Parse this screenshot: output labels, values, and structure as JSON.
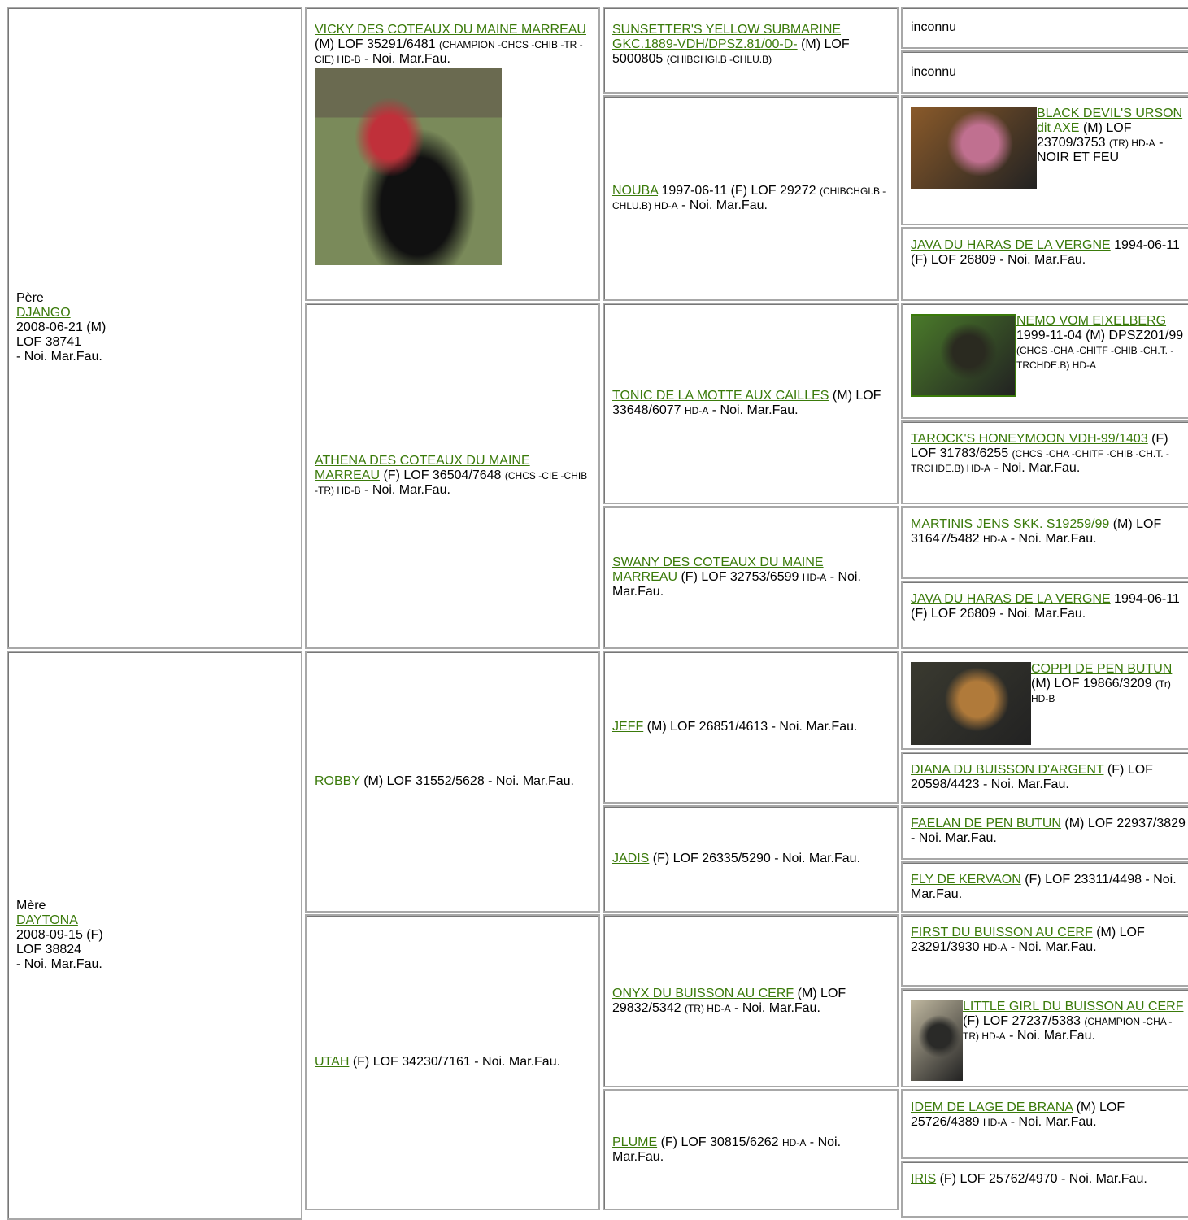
{
  "pere": {
    "label": "Père",
    "name": "DJANGO",
    "lines": [
      "2008-06-21 (M)",
      "LOF 38741",
      "- Noi. Mar.Fau."
    ]
  },
  "mere": {
    "label": "Mère",
    "name": "DAYTONA",
    "lines": [
      "2008-09-15 (F)",
      "LOF 38824",
      "- Noi. Mar.Fau."
    ]
  },
  "cells": [
    {
      "name": "VICKY DES COTEAUX DU MAINE MARREAU",
      "parts": [
        {
          "text": "(M) LOF 35291/6481"
        },
        {
          "text": "(CHAMPION -CHCS -CHIB -TR -CIE) HD-B",
          "small": true
        },
        {
          "text": "- Noi. Mar.Fau."
        }
      ]
    },
    {
      "name": "ATHENA DES COTEAUX DU MAINE MARREAU",
      "parts": [
        {
          "text": "(F) LOF 36504/7648"
        },
        {
          "text": "(CHCS -CIE -CHIB -TR) HD-B",
          "small": true
        },
        {
          "text": "- Noi. Mar.Fau."
        }
      ]
    },
    {
      "name": "SUNSETTER'S YELLOW SUBMARINE GKC.1889-VDH/DPSZ.81/00-D-",
      "parts": [
        {
          "text": "(M) LOF 5000805"
        },
        {
          "text": "(CHIBCHGI.B -CHLU.B)",
          "small": true
        }
      ]
    },
    {
      "name": "NOUBA",
      "parts": [
        {
          "text": "1997-06-11 (F) LOF 29272"
        },
        {
          "text": "(CHIBCHGI.B -CHLU.B) HD-A",
          "small": true
        },
        {
          "text": "- Noi. Mar.Fau."
        }
      ]
    },
    {
      "name": "TONIC DE LA MOTTE AUX CAILLES",
      "parts": [
        {
          "text": "(M) LOF 33648/6077"
        },
        {
          "text": "HD-A",
          "small": true
        },
        {
          "text": "- Noi. Mar.Fau."
        }
      ]
    },
    {
      "name": "SWANY DES COTEAUX DU MAINE MARREAU",
      "parts": [
        {
          "text": "(F) LOF 32753/6599"
        },
        {
          "text": "HD-A",
          "small": true
        },
        {
          "text": "- Noi. Mar.Fau."
        }
      ]
    },
    {
      "parts": [
        {
          "text": "inconnu"
        }
      ]
    },
    {
      "parts": [
        {
          "text": "inconnu"
        }
      ]
    },
    {
      "name": "BLACK DEVIL'S URSON dit AXE",
      "parts": [
        {
          "text": "(M) LOF 23709/3753"
        },
        {
          "text": "(TR) HD-A",
          "small": true
        },
        {
          "text": "- NOIR ET FEU"
        }
      ]
    },
    {
      "name": "JAVA DU HARAS DE LA VERGNE",
      "parts": [
        {
          "text": "1994-06-11 (F) LOF 26809 - Noi. Mar.Fau."
        }
      ]
    },
    {
      "name": "NEMO VOM EIXELBERG",
      "parts": [
        {
          "text": "1999-11-04 (M) DPSZ201/99"
        },
        {
          "text": "(CHCS -CHA -CHITF -CHIB -CH.T. -TRCHDE.B) HD-A",
          "small": true
        }
      ]
    },
    {
      "name": "TAROCK'S HONEYMOON VDH-99/1403",
      "parts": [
        {
          "text": "(F) LOF 31783/6255"
        },
        {
          "text": "(CHCS -CHA -CHITF -CHIB -CH.T. -TRCHDE.B) HD-A",
          "small": true
        },
        {
          "text": "- Noi. Mar.Fau."
        }
      ]
    },
    {
      "name": "MARTINIS JENS SKK. S19259/99",
      "parts": [
        {
          "text": "(M) LOF 31647/5482"
        },
        {
          "text": "HD-A",
          "small": true
        },
        {
          "text": "- Noi. Mar.Fau."
        }
      ]
    },
    {
      "name": "JAVA DU HARAS DE LA VERGNE",
      "parts": [
        {
          "text": "1994-06-11 (F) LOF 26809 - Noi. Mar.Fau."
        }
      ]
    },
    {
      "name": "ROBBY",
      "parts": [
        {
          "text": "(M) LOF 31552/5628 - Noi. Mar.Fau."
        }
      ]
    },
    {
      "name": "UTAH",
      "parts": [
        {
          "text": "(F) LOF 34230/7161 - Noi. Mar.Fau."
        }
      ]
    },
    {
      "name": "JEFF",
      "parts": [
        {
          "text": "(M) LOF 26851/4613 - Noi. Mar.Fau."
        }
      ]
    },
    {
      "name": "JADIS",
      "parts": [
        {
          "text": "(F) LOF 26335/5290 - Noi. Mar.Fau."
        }
      ]
    },
    {
      "name": "ONYX DU BUISSON AU CERF",
      "parts": [
        {
          "text": "(M) LOF 29832/5342"
        },
        {
          "text": "(TR) HD-A",
          "small": true
        },
        {
          "text": "- Noi. Mar.Fau."
        }
      ]
    },
    {
      "name": "PLUME",
      "parts": [
        {
          "text": "(F) LOF 30815/6262"
        },
        {
          "text": "HD-A",
          "small": true
        },
        {
          "text": "- Noi. Mar.Fau."
        }
      ]
    },
    {
      "name": "COPPI DE PEN BUTUN",
      "parts": [
        {
          "text": "(M) LOF 19866/3209"
        },
        {
          "text": "(Tr) HD-B",
          "small": true
        }
      ]
    },
    {
      "name": "DIANA DU BUISSON D'ARGENT",
      "parts": [
        {
          "text": "(F) LOF 20598/4423 - Noi. Mar.Fau."
        }
      ]
    },
    {
      "name": "FAELAN DE PEN BUTUN",
      "parts": [
        {
          "text": "(M) LOF 22937/3829 - Noi. Mar.Fau."
        }
      ]
    },
    {
      "name": "FLY DE KERVAON",
      "parts": [
        {
          "text": "(F) LOF 23311/4498 - Noi. Mar.Fau."
        }
      ]
    },
    {
      "name": "FIRST DU BUISSON AU CERF",
      "parts": [
        {
          "text": "(M) LOF 23291/3930"
        },
        {
          "text": "HD-A",
          "small": true
        },
        {
          "text": "- Noi. Mar.Fau."
        }
      ]
    },
    {
      "name": "LITTLE GIRL DU BUISSON AU CERF",
      "parts": [
        {
          "text": "(F) LOF 27237/5383"
        },
        {
          "text": "(CHAMPION -CHA -TR) HD-A",
          "small": true
        },
        {
          "text": "- Noi. Mar.Fau."
        }
      ]
    },
    {
      "name": "IDEM DE LAGE DE BRANA",
      "parts": [
        {
          "text": "(M) LOF 25726/4389"
        },
        {
          "text": "HD-A",
          "small": true
        },
        {
          "text": "- Noi. Mar.Fau."
        }
      ]
    },
    {
      "name": "IRIS",
      "parts": [
        {
          "text": "(F) LOF 25762/4970 - Noi. Mar.Fau."
        }
      ]
    }
  ]
}
